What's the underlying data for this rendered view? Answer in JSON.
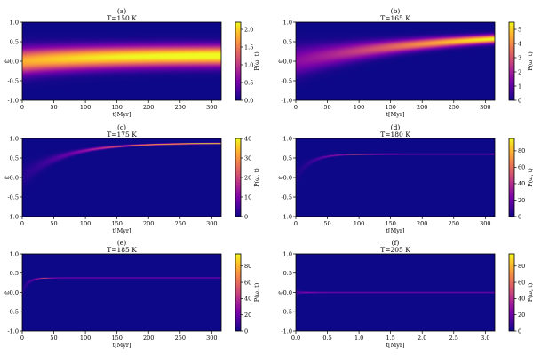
{
  "chart_data": [
    {
      "type": "heatmap",
      "panel": "(a)",
      "title": "T=150 K",
      "xlabel": "t[Myr]",
      "ylabel": "ω",
      "colorbar_label": "P(ω, t)",
      "colormap": "plasma",
      "xlim": [
        0,
        315
      ],
      "ylim": [
        -1.0,
        1.0
      ],
      "xticks": [
        0,
        50,
        100,
        150,
        200,
        250,
        300
      ],
      "yticks": [
        -1.0,
        -0.5,
        0.0,
        0.5,
        1.0
      ],
      "clim": [
        0,
        2.2
      ],
      "cticks": [
        0.0,
        0.5,
        1.0,
        1.5,
        2.0
      ],
      "ridge": {
        "start": 0.0,
        "end": 0.15,
        "tau": 120
      },
      "width_sigma": {
        "start": 0.22,
        "end": 0.17,
        "tau": 120
      }
    },
    {
      "type": "heatmap",
      "panel": "(b)",
      "title": "T=165 K",
      "xlabel": "t[Myr]",
      "ylabel": "ω",
      "colorbar_label": "P(ω, t)",
      "colormap": "plasma",
      "xlim": [
        0,
        315
      ],
      "ylim": [
        -1.0,
        1.0
      ],
      "xticks": [
        0,
        50,
        100,
        150,
        200,
        250,
        300
      ],
      "yticks": [
        -1.0,
        -0.5,
        0.0,
        0.5,
        1.0
      ],
      "clim": [
        0,
        5.5
      ],
      "cticks": [
        0,
        1,
        2,
        3,
        4,
        5
      ],
      "ridge": {
        "start": 0.0,
        "end": 0.8,
        "tau": 250
      },
      "width_sigma": {
        "start": 0.25,
        "end": 0.05,
        "tau": 140
      }
    },
    {
      "type": "heatmap",
      "panel": "(c)",
      "title": "T=175 K",
      "xlabel": "t[Myr]",
      "ylabel": "ω",
      "colorbar_label": "P(ω, t)",
      "colormap": "plasma",
      "xlim": [
        0,
        315
      ],
      "ylim": [
        -1.0,
        1.0
      ],
      "xticks": [
        0,
        50,
        100,
        150,
        200,
        250,
        300
      ],
      "yticks": [
        -1.0,
        -0.5,
        0.0,
        0.5,
        1.0
      ],
      "clim": [
        0,
        40
      ],
      "cticks": [
        0,
        10,
        20,
        30,
        40
      ],
      "ridge": {
        "start": 0.0,
        "end": 0.88,
        "tau": 65
      },
      "width_sigma": {
        "start": 0.2,
        "end": 0.01,
        "tau": 45
      }
    },
    {
      "type": "heatmap",
      "panel": "(d)",
      "title": "T=180 K",
      "xlabel": "t[Myr]",
      "ylabel": "ω",
      "colorbar_label": "P(ω, t)",
      "colormap": "plasma",
      "xlim": [
        0,
        315
      ],
      "ylim": [
        -1.0,
        1.0
      ],
      "xticks": [
        0,
        50,
        100,
        150,
        200,
        250,
        300
      ],
      "yticks": [
        -1.0,
        -0.5,
        0.0,
        0.5,
        1.0
      ],
      "clim": [
        0,
        95
      ],
      "cticks": [
        0,
        20,
        40,
        60,
        80
      ],
      "ridge": {
        "start": 0.0,
        "end": 0.6,
        "tau": 22
      },
      "width_sigma": {
        "start": 0.15,
        "end": 0.007,
        "tau": 18
      }
    },
    {
      "type": "heatmap",
      "panel": "(e)",
      "title": "T=185 K",
      "xlabel": "t[Myr]",
      "ylabel": "ω",
      "colorbar_label": "P(ω, t)",
      "colormap": "plasma",
      "xlim": [
        0,
        315
      ],
      "ylim": [
        -1.0,
        1.0
      ],
      "xticks": [
        0,
        50,
        100,
        150,
        200,
        250,
        300
      ],
      "yticks": [
        -1.0,
        -0.5,
        0.0,
        0.5,
        1.0
      ],
      "clim": [
        0,
        95
      ],
      "cticks": [
        0,
        20,
        40,
        60,
        80
      ],
      "ridge": {
        "start": 0.0,
        "end": 0.38,
        "tau": 9
      },
      "width_sigma": {
        "start": 0.1,
        "end": 0.006,
        "tau": 8
      }
    },
    {
      "type": "heatmap",
      "panel": "(f)",
      "title": "T=205 K",
      "xlabel": "t[Myr]",
      "ylabel": "ω",
      "colorbar_label": "P(ω, t)",
      "colormap": "plasma",
      "xlim": [
        0,
        3.15
      ],
      "ylim": [
        -1.0,
        1.0
      ],
      "xticks": [
        0.0,
        0.5,
        1.0,
        1.5,
        2.0,
        2.5,
        3.0
      ],
      "xtick_labels": [
        "0.0",
        "0.5",
        "1.0",
        "1.5",
        "2.0",
        "2.5",
        "3.0"
      ],
      "yticks": [
        -1.0,
        -0.5,
        0.0,
        0.5,
        1.0
      ],
      "clim": [
        0,
        95
      ],
      "cticks": [
        0,
        20,
        40,
        60,
        80
      ],
      "ridge": {
        "start": 0.0,
        "end": 0.0,
        "tau": 1
      },
      "width_sigma": {
        "start": 0.05,
        "end": 0.006,
        "tau": 0.08
      }
    }
  ]
}
